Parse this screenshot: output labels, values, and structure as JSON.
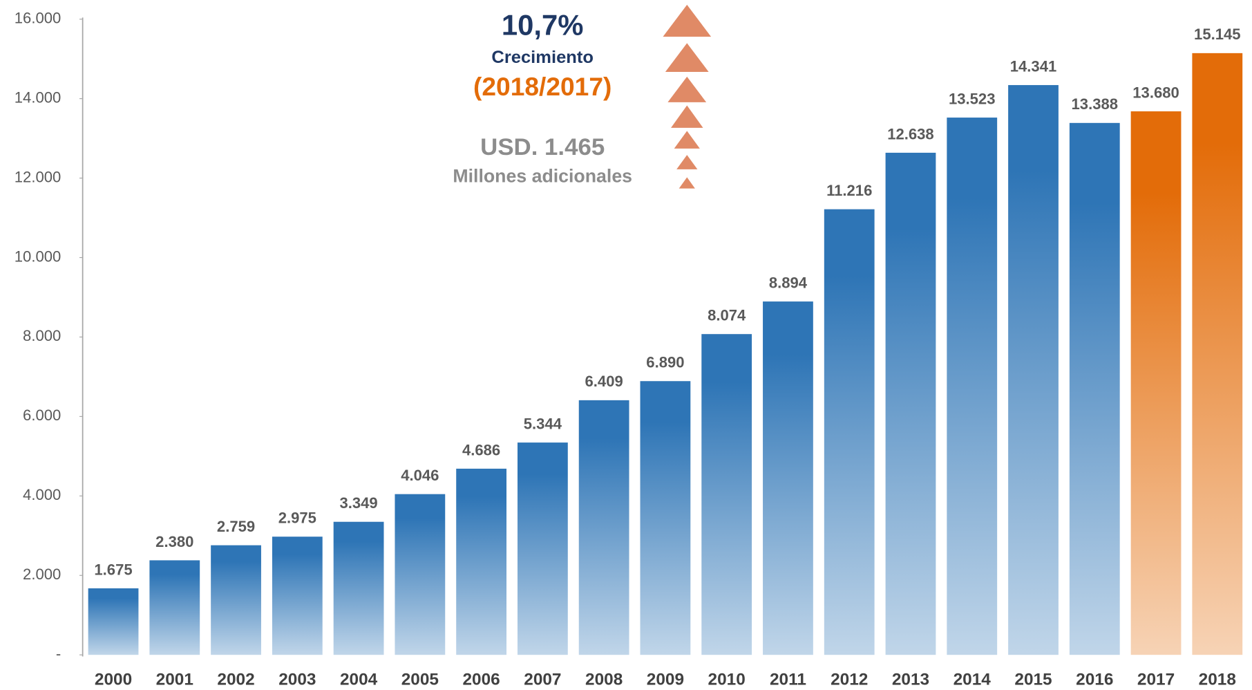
{
  "chart_data": {
    "type": "bar",
    "annotations": {
      "growth": "10,7%",
      "growth_label": "Crecimiento",
      "period": "(2018/2017)",
      "amount": "USD. 1.465",
      "amount_label": "Millones adicionales"
    },
    "categories": [
      "2000",
      "2001",
      "2002",
      "2003",
      "2004",
      "2005",
      "2006",
      "2007",
      "2008",
      "2009",
      "2010",
      "2011",
      "2012",
      "2013",
      "2014",
      "2015",
      "2016",
      "2017",
      "2018"
    ],
    "values": [
      1675,
      2380,
      2759,
      2975,
      3349,
      4046,
      4686,
      5344,
      6409,
      6890,
      8074,
      8894,
      11216,
      12638,
      13523,
      14341,
      13388,
      13680,
      15145
    ],
    "value_labels": [
      "1.675",
      "2.380",
      "2.759",
      "2.975",
      "3.349",
      "4.046",
      "4.686",
      "5.344",
      "6.409",
      "6.890",
      "8.074",
      "8.894",
      "11.216",
      "12.638",
      "13.523",
      "14.341",
      "13.388",
      "13.680",
      "15.145"
    ],
    "bar_colors": [
      "#2e75b6",
      "#2e75b6",
      "#2e75b6",
      "#2e75b6",
      "#2e75b6",
      "#2e75b6",
      "#2e75b6",
      "#2e75b6",
      "#2e75b6",
      "#2e75b6",
      "#2e75b6",
      "#2e75b6",
      "#2e75b6",
      "#2e75b6",
      "#2e75b6",
      "#2e75b6",
      "#2e75b6",
      "#e36c09",
      "#e36c09"
    ],
    "ylim": [
      0,
      16000
    ],
    "yticks": [
      {
        "value": 0,
        "label": "-"
      },
      {
        "value": 2000,
        "label": "2.000"
      },
      {
        "value": 4000,
        "label": "4.000"
      },
      {
        "value": 6000,
        "label": "6.000"
      },
      {
        "value": 8000,
        "label": "8.000"
      },
      {
        "value": 10000,
        "label": "10.000"
      },
      {
        "value": 12000,
        "label": "12.000"
      },
      {
        "value": 14000,
        "label": "14.000"
      },
      {
        "value": 16000,
        "label": "16.000"
      }
    ],
    "grid": false
  }
}
